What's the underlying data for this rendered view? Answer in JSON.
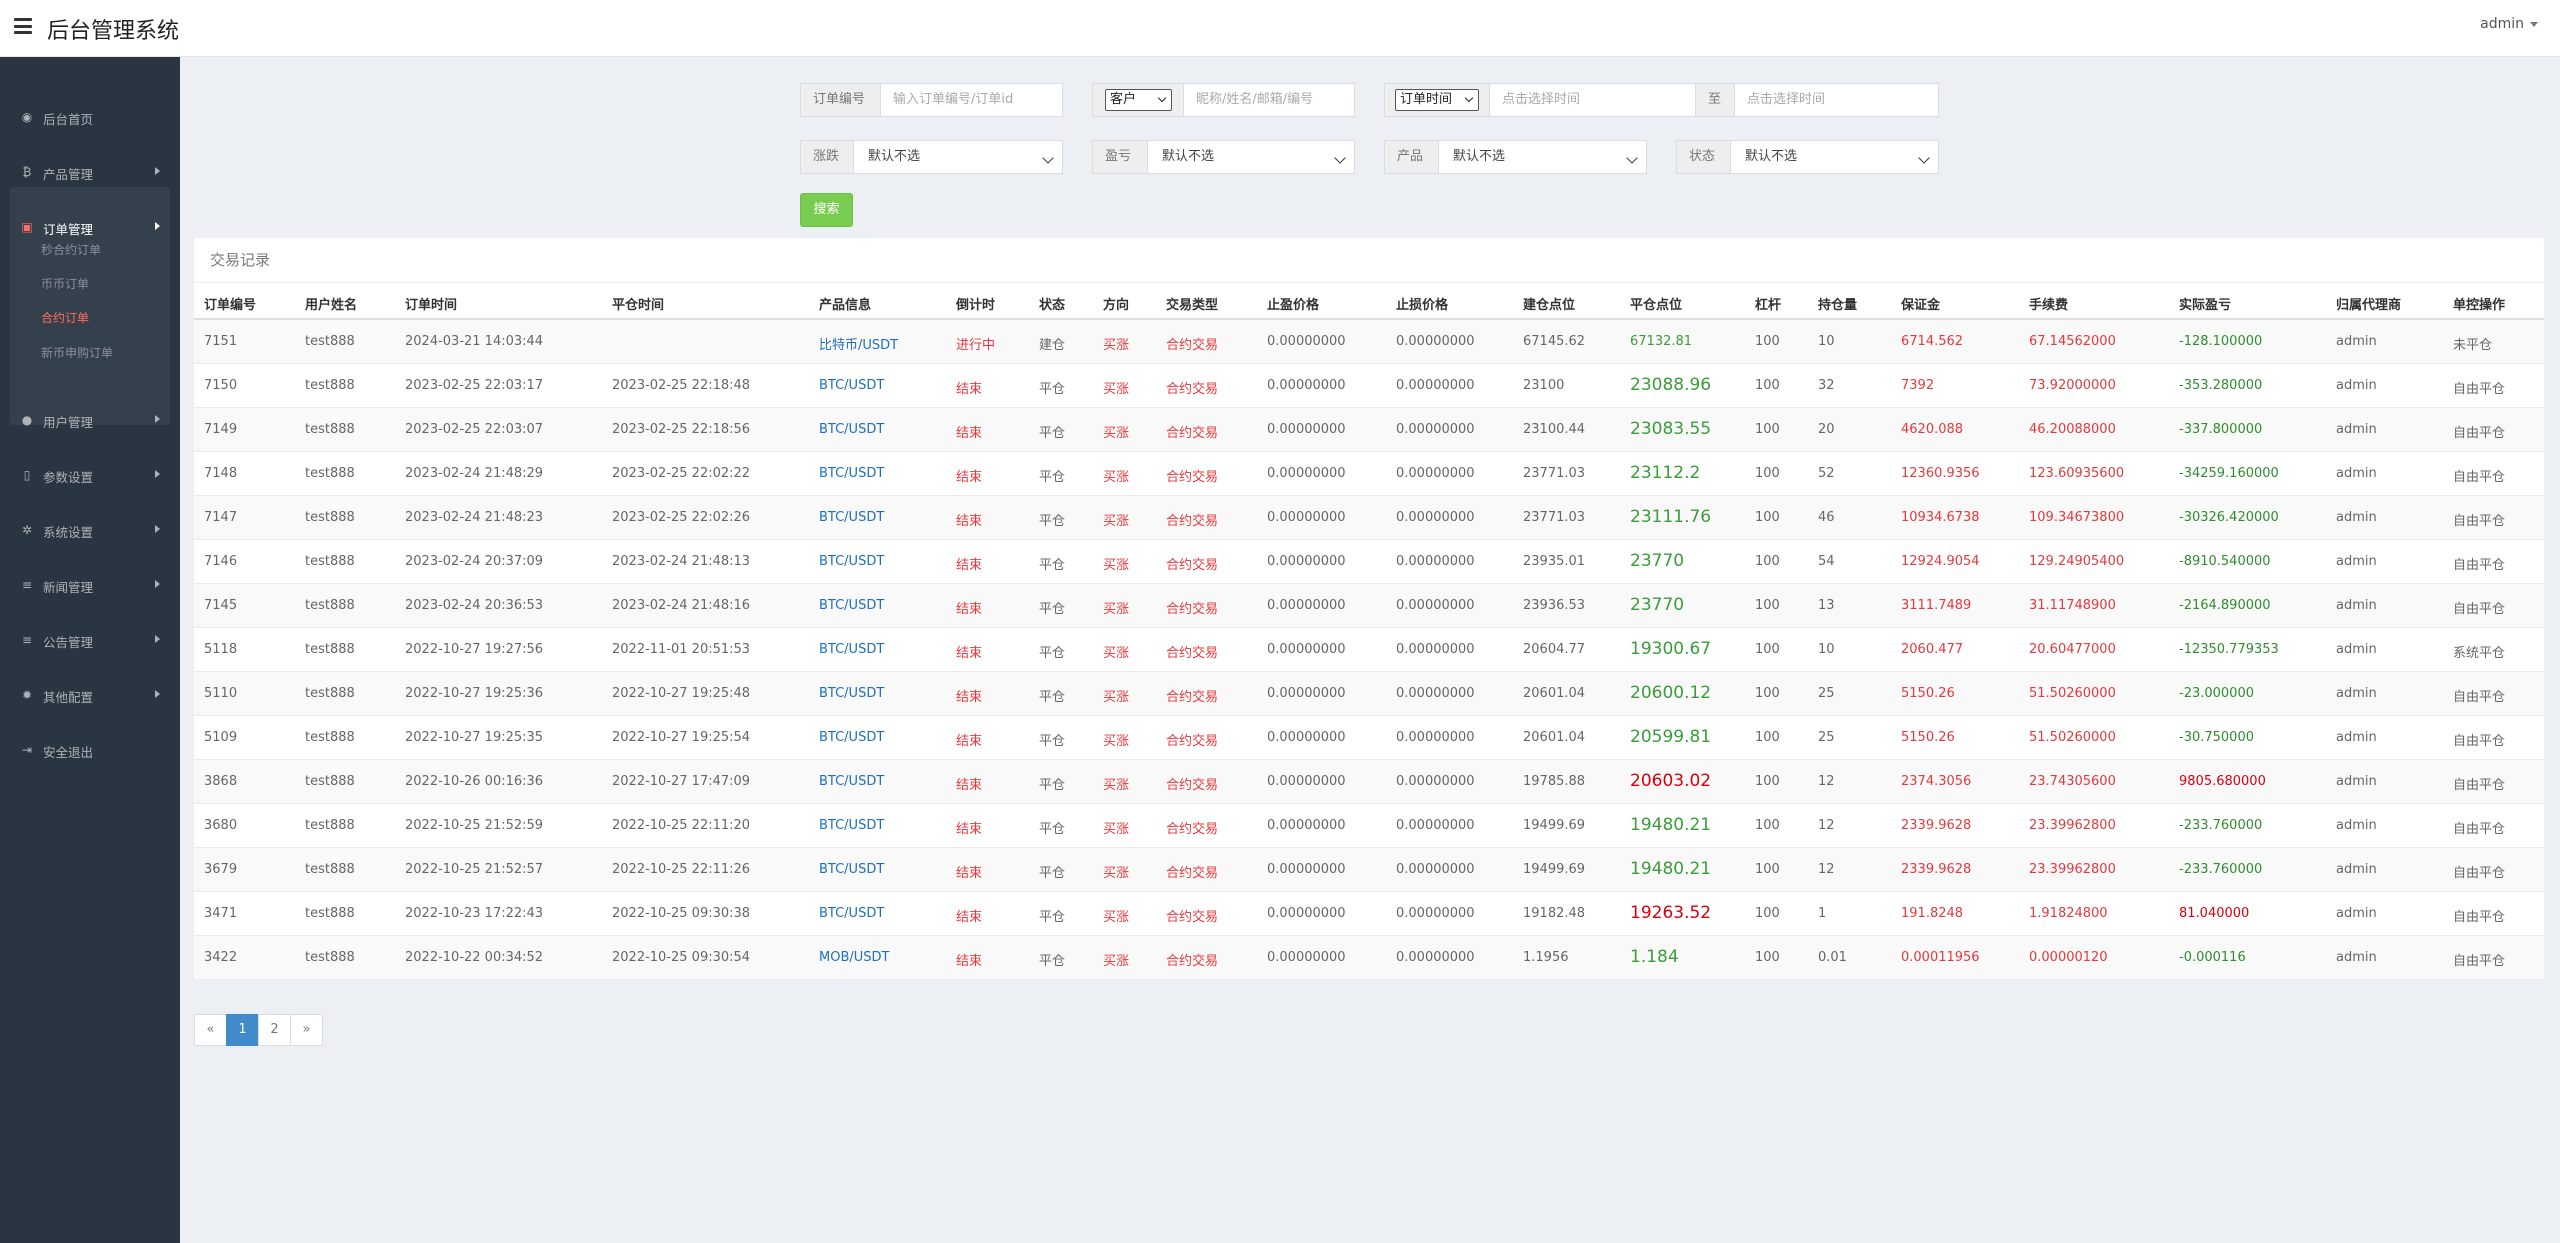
{
  "header": {
    "title": "后台管理系统",
    "user": "admin"
  },
  "sidebar": {
    "items": [
      {
        "label": "后台首页",
        "icon": "dashboard-icon",
        "glyph": "◉"
      },
      {
        "label": "产品管理",
        "icon": "bitcoin-icon",
        "glyph": "₿"
      },
      {
        "label": "订单管理",
        "icon": "orders-icon",
        "glyph": "▣"
      },
      {
        "label": "用户管理",
        "icon": "user-icon",
        "glyph": "●"
      },
      {
        "label": "参数设置",
        "icon": "file-icon",
        "glyph": "▯"
      },
      {
        "label": "系统设置",
        "icon": "gears-icon",
        "glyph": "✲"
      },
      {
        "label": "新闻管理",
        "icon": "list-icon",
        "glyph": "≡"
      },
      {
        "label": "公告管理",
        "icon": "list-icon-2",
        "glyph": "≡"
      },
      {
        "label": "其他配置",
        "icon": "gear-icon",
        "glyph": "✹"
      },
      {
        "label": "安全退出",
        "icon": "logout-icon",
        "glyph": "⇥"
      }
    ],
    "sub_items": [
      "秒合约订单",
      "币币订单",
      "合约订单",
      "新币申购订单"
    ]
  },
  "search": {
    "order_no_label": "订单编号",
    "order_no_placeholder": "输入订单编号/订单id",
    "customer_select": "客户",
    "customer_placeholder": "昵称/姓名/邮箱/编号",
    "time_select": "订单时间",
    "time_start_placeholder": "点击选择时间",
    "time_to": "至",
    "time_end_placeholder": "点击选择时间",
    "rise_fall_label": "涨跌",
    "rise_fall_value": "默认不选",
    "pnl_label": "盈亏",
    "pnl_value": "默认不选",
    "product_label": "产品",
    "product_value": "默认不选",
    "status_label": "状态",
    "status_value": "默认不选",
    "search_button": "搜索"
  },
  "table": {
    "title": "交易记录",
    "columns": [
      "订单编号",
      "用户姓名",
      "订单时间",
      "平仓时间",
      "产品信息",
      "倒计时",
      "状态",
      "方向",
      "交易类型",
      "止盈价格",
      "止损价格",
      "建仓点位",
      "平仓点位",
      "杠杆",
      "持仓量",
      "保证金",
      "手续费",
      "实际盈亏",
      "归属代理商",
      "单控操作"
    ],
    "rows": [
      [
        "7151",
        "test888",
        "2024-03-21 14:03:44",
        "",
        "比特币/USDT",
        "进行中",
        "建仓",
        "买涨",
        "合约交易",
        "0.00000000",
        "0.00000000",
        "67145.62",
        "67132.81",
        "100",
        "10",
        "6714.562",
        "67.14562000",
        "-128.100000",
        "admin",
        "未平仓"
      ],
      [
        "7150",
        "test888",
        "2023-02-25 22:03:17",
        "2023-02-25 22:18:48",
        "BTC/USDT",
        "结束",
        "平仓",
        "买涨",
        "合约交易",
        "0.00000000",
        "0.00000000",
        "23100",
        "23088.96",
        "100",
        "32",
        "7392",
        "73.92000000",
        "-353.280000",
        "admin",
        "自由平仓"
      ],
      [
        "7149",
        "test888",
        "2023-02-25 22:03:07",
        "2023-02-25 22:18:56",
        "BTC/USDT",
        "结束",
        "平仓",
        "买涨",
        "合约交易",
        "0.00000000",
        "0.00000000",
        "23100.44",
        "23083.55",
        "100",
        "20",
        "4620.088",
        "46.20088000",
        "-337.800000",
        "admin",
        "自由平仓"
      ],
      [
        "7148",
        "test888",
        "2023-02-24 21:48:29",
        "2023-02-25 22:02:22",
        "BTC/USDT",
        "结束",
        "平仓",
        "买涨",
        "合约交易",
        "0.00000000",
        "0.00000000",
        "23771.03",
        "23112.2",
        "100",
        "52",
        "12360.9356",
        "123.60935600",
        "-34259.160000",
        "admin",
        "自由平仓"
      ],
      [
        "7147",
        "test888",
        "2023-02-24 21:48:23",
        "2023-02-25 22:02:26",
        "BTC/USDT",
        "结束",
        "平仓",
        "买涨",
        "合约交易",
        "0.00000000",
        "0.00000000",
        "23771.03",
        "23111.76",
        "100",
        "46",
        "10934.6738",
        "109.34673800",
        "-30326.420000",
        "admin",
        "自由平仓"
      ],
      [
        "7146",
        "test888",
        "2023-02-24 20:37:09",
        "2023-02-24 21:48:13",
        "BTC/USDT",
        "结束",
        "平仓",
        "买涨",
        "合约交易",
        "0.00000000",
        "0.00000000",
        "23935.01",
        "23770",
        "100",
        "54",
        "12924.9054",
        "129.24905400",
        "-8910.540000",
        "admin",
        "自由平仓"
      ],
      [
        "7145",
        "test888",
        "2023-02-24 20:36:53",
        "2023-02-24 21:48:16",
        "BTC/USDT",
        "结束",
        "平仓",
        "买涨",
        "合约交易",
        "0.00000000",
        "0.00000000",
        "23936.53",
        "23770",
        "100",
        "13",
        "3111.7489",
        "31.11748900",
        "-2164.890000",
        "admin",
        "自由平仓"
      ],
      [
        "5118",
        "test888",
        "2022-10-27 19:27:56",
        "2022-11-01 20:51:53",
        "BTC/USDT",
        "结束",
        "平仓",
        "买涨",
        "合约交易",
        "0.00000000",
        "0.00000000",
        "20604.77",
        "19300.67",
        "100",
        "10",
        "2060.477",
        "20.60477000",
        "-12350.779353",
        "admin",
        "系统平仓"
      ],
      [
        "5110",
        "test888",
        "2022-10-27 19:25:36",
        "2022-10-27 19:25:48",
        "BTC/USDT",
        "结束",
        "平仓",
        "买涨",
        "合约交易",
        "0.00000000",
        "0.00000000",
        "20601.04",
        "20600.12",
        "100",
        "25",
        "5150.26",
        "51.50260000",
        "-23.000000",
        "admin",
        "自由平仓"
      ],
      [
        "5109",
        "test888",
        "2022-10-27 19:25:35",
        "2022-10-27 19:25:54",
        "BTC/USDT",
        "结束",
        "平仓",
        "买涨",
        "合约交易",
        "0.00000000",
        "0.00000000",
        "20601.04",
        "20599.81",
        "100",
        "25",
        "5150.26",
        "51.50260000",
        "-30.750000",
        "admin",
        "自由平仓"
      ],
      [
        "3868",
        "test888",
        "2022-10-26 00:16:36",
        "2022-10-27 17:47:09",
        "BTC/USDT",
        "结束",
        "平仓",
        "买涨",
        "合约交易",
        "0.00000000",
        "0.00000000",
        "19785.88",
        "20603.02",
        "100",
        "12",
        "2374.3056",
        "23.74305600",
        "9805.680000",
        "admin",
        "自由平仓"
      ],
      [
        "3680",
        "test888",
        "2022-10-25 21:52:59",
        "2022-10-25 22:11:20",
        "BTC/USDT",
        "结束",
        "平仓",
        "买涨",
        "合约交易",
        "0.00000000",
        "0.00000000",
        "19499.69",
        "19480.21",
        "100",
        "12",
        "2339.9628",
        "23.39962800",
        "-233.760000",
        "admin",
        "自由平仓"
      ],
      [
        "3679",
        "test888",
        "2022-10-25 21:52:57",
        "2022-10-25 22:11:26",
        "BTC/USDT",
        "结束",
        "平仓",
        "买涨",
        "合约交易",
        "0.00000000",
        "0.00000000",
        "19499.69",
        "19480.21",
        "100",
        "12",
        "2339.9628",
        "23.39962800",
        "-233.760000",
        "admin",
        "自由平仓"
      ],
      [
        "3471",
        "test888",
        "2022-10-23 17:22:43",
        "2022-10-25 09:30:38",
        "BTC/USDT",
        "结束",
        "平仓",
        "买涨",
        "合约交易",
        "0.00000000",
        "0.00000000",
        "19182.48",
        "19263.52",
        "100",
        "1",
        "191.8248",
        "1.91824800",
        "81.040000",
        "admin",
        "自由平仓"
      ],
      [
        "3422",
        "test888",
        "2022-10-22 00:34:52",
        "2022-10-25 09:30:54",
        "MOB/USDT",
        "结束",
        "平仓",
        "买涨",
        "合约交易",
        "0.00000000",
        "0.00000000",
        "1.1956",
        "1.184",
        "100",
        "0.01",
        "0.00011956",
        "0.00000120",
        "-0.000116",
        "admin",
        "自由平仓"
      ]
    ]
  },
  "pagination": {
    "prev": "«",
    "pages": [
      "1",
      "2"
    ],
    "next": "»",
    "current": "1"
  },
  "colors": {
    "sidebar_bg": "#2a3542",
    "active_accent": "#ff6c60",
    "search_button": "#78cd51",
    "product_link": "#1d6fc1",
    "loss_green": "#2f8c2f",
    "red_text": "#e4393c",
    "page_active": "#428bca"
  }
}
